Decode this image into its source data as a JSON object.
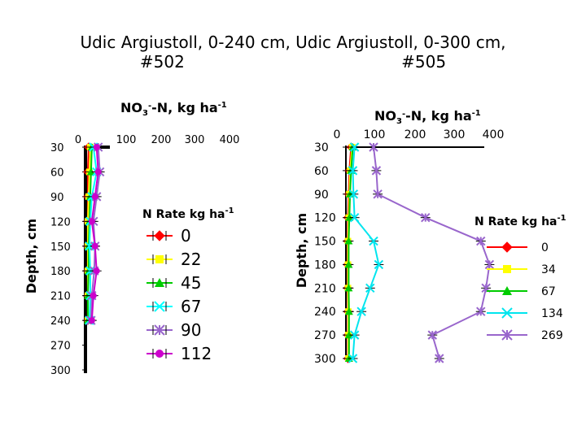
{
  "header": {
    "line1": "Udic Argiustoll, 0-240 cm, Udic Argiustoll, 0-300 cm,",
    "line2": "#502 #505"
  },
  "chart_data": [
    {
      "type": "line",
      "orientation": "depth-profile",
      "x_title": "NO3--N, kg ha-1",
      "x_title_base": "NO",
      "x_title_sub": "3",
      "x_title_sup1": "-",
      "x_title_mid": "-N, kg ha",
      "x_title_sup2": "-1",
      "y_title": "Depth, cm",
      "x_axis_position": "top",
      "xlim": [
        0,
        400
      ],
      "ylim": [
        30,
        300
      ],
      "x_ticks": [
        "0",
        "100",
        "200",
        "300",
        "400"
      ],
      "y_ticks": [
        "30",
        "60",
        "90",
        "120",
        "150",
        "180",
        "210",
        "240",
        "270",
        "300"
      ],
      "legend_title": "N Rate kg ha-1",
      "legend_title_base": "N Rate kg ha",
      "legend_title_sup": "-1",
      "legend_position": "right",
      "depth": [
        30,
        60,
        90,
        120,
        150,
        180,
        210,
        240
      ],
      "series": [
        {
          "name": "0",
          "color": "#ff0000",
          "marker": "diamond",
          "x": [
            4,
            3,
            3,
            3,
            3,
            3,
            3,
            3
          ]
        },
        {
          "name": "22",
          "color": "#ffff00",
          "marker": "square",
          "x": [
            6,
            5,
            4,
            3,
            3,
            3,
            3,
            3
          ]
        },
        {
          "name": "45",
          "color": "#00cc00",
          "marker": "triangle",
          "x": [
            8,
            7,
            6,
            5,
            4,
            4,
            3,
            3
          ]
        },
        {
          "name": "67",
          "color": "#00ffff",
          "marker": "x",
          "x": [
            10,
            14,
            8,
            6,
            5,
            6,
            6,
            5
          ]
        },
        {
          "name": "90",
          "color": "#9966cc",
          "marker": "star",
          "x": [
            16,
            18,
            14,
            10,
            12,
            11,
            8,
            7
          ]
        },
        {
          "name": "112",
          "color": "#cc00cc",
          "marker": "circle",
          "x": [
            14,
            16,
            12,
            8,
            12,
            14,
            10,
            8
          ]
        }
      ]
    },
    {
      "type": "line",
      "orientation": "depth-profile",
      "x_title": "NO3--N, kg ha-1",
      "x_title_base": "NO",
      "x_title_sub": "3",
      "x_title_sup1": "-",
      "x_title_mid": "-N, kg ha",
      "x_title_sup2": "-1",
      "y_title": "Depth, cm",
      "x_axis_position": "top",
      "xlim": [
        0,
        400
      ],
      "ylim": [
        30,
        300
      ],
      "x_ticks": [
        "0",
        "100",
        "200",
        "300",
        "400"
      ],
      "y_ticks": [
        "30",
        "60",
        "90",
        "120",
        "150",
        "180",
        "210",
        "240",
        "270",
        "300"
      ],
      "legend_title": "N Rate kg ha-1",
      "legend_title_base": "N Rate kg ha",
      "legend_title_sup": "-1",
      "legend_position": "right",
      "depth": [
        30,
        60,
        90,
        120,
        150,
        180,
        210,
        240,
        270,
        300
      ],
      "series": [
        {
          "name": "0",
          "color": "#ff0000",
          "marker": "diamond",
          "x": [
            15,
            10,
            8,
            6,
            5,
            5,
            5,
            6,
            6,
            6
          ]
        },
        {
          "name": "34",
          "color": "#ffff00",
          "marker": "square",
          "x": [
            18,
            12,
            10,
            8,
            6,
            6,
            6,
            7,
            7,
            7
          ]
        },
        {
          "name": "67",
          "color": "#00cc00",
          "marker": "triangle",
          "x": [
            20,
            15,
            12,
            10,
            8,
            8,
            8,
            9,
            9,
            9
          ]
        },
        {
          "name": "134",
          "color": "#00e5ee",
          "marker": "x",
          "x": [
            25,
            20,
            22,
            25,
            80,
            95,
            70,
            45,
            25,
            20
          ]
        },
        {
          "name": "269",
          "color": "#9966cc",
          "marker": "star",
          "x": [
            80,
            88,
            92,
            230,
            390,
            415,
            405,
            390,
            250,
            270
          ]
        }
      ]
    }
  ]
}
